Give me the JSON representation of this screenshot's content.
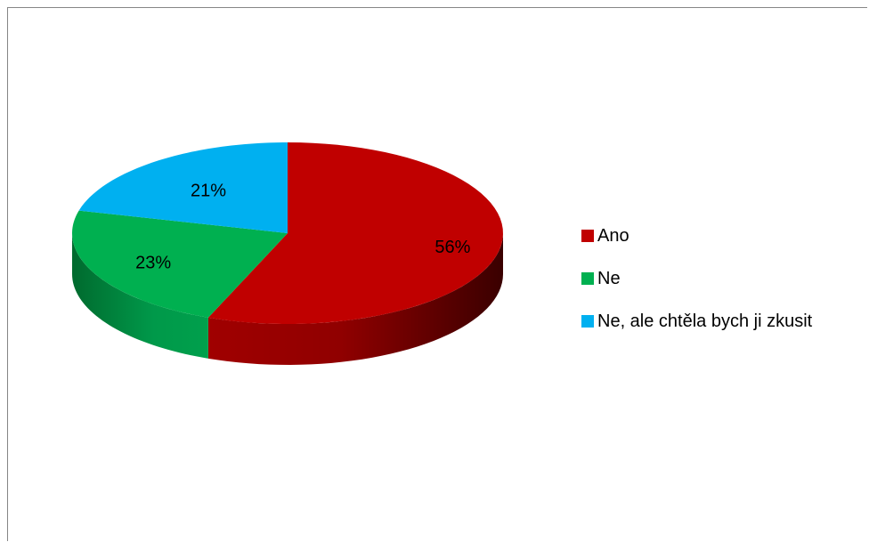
{
  "chart_data": {
    "type": "pie",
    "style": "3d",
    "categories": [
      "Ano",
      "Ne",
      "Ne, ale chtěla bych ji zkusit"
    ],
    "values": [
      56,
      23,
      21
    ],
    "value_labels": [
      "56%",
      "23%",
      "21%"
    ],
    "colors": [
      "#c00000",
      "#00b050",
      "#00b0f0"
    ],
    "legend_position": "right",
    "title": ""
  }
}
